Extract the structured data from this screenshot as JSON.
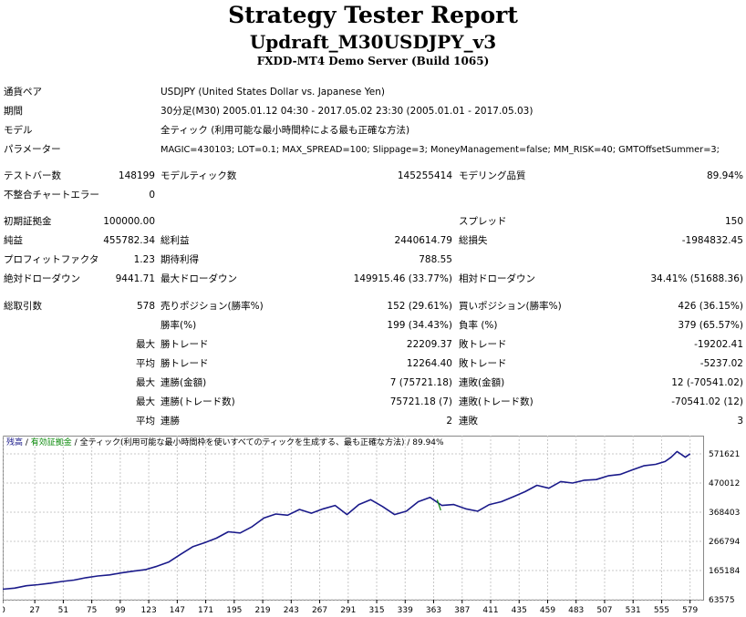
{
  "title": "Strategy Tester Report",
  "strategy": "Updraft_M30USDJPY_v3",
  "server": "FXDD-MT4 Demo Server (Build 1065)",
  "settings": [
    {
      "label": "通貨ペア",
      "value": "USDJPY (United States Dollar vs. Japanese Yen)"
    },
    {
      "label": "期間",
      "value": "30分足(M30) 2005.01.12 04:30 - 2017.05.02 23:30 (2005.01.01 - 2017.05.03)"
    },
    {
      "label": "モデル",
      "value": "全ティック (利用可能な最小時間枠による最も正確な方法)"
    },
    {
      "label": "パラメーター",
      "value": "MAGIC=430103; LOT=0.1; MAX_SPREAD=100; Slippage=3; MoneyManagement=false; MM_RISK=40; GMTOffsetSummer=3;"
    }
  ],
  "stats": {
    "bars_label": "テストバー数",
    "bars": "148199",
    "ticks_label": "モデルティック数",
    "ticks": "145255414",
    "quality_label": "モデリング品質",
    "quality": "89.94%",
    "mismatch_label": "不整合チャートエラー",
    "mismatch": "0",
    "deposit_label": "初期証拠金",
    "deposit": "100000.00",
    "spread_label": "スプレッド",
    "spread": "150",
    "net_label": "純益",
    "net": "455782.34",
    "gross_profit_label": "総利益",
    "gross_profit": "2440614.79",
    "gross_loss_label": "総損失",
    "gross_loss": "-1984832.45",
    "pf_label": "プロフィットファクタ",
    "pf": "1.23",
    "expected_label": "期待利得",
    "expected": "788.55",
    "abs_dd_label": "絶対ドローダウン",
    "abs_dd": "9441.71",
    "max_dd_label": "最大ドローダウン",
    "max_dd": "149915.46 (33.77%)",
    "rel_dd_label": "相対ドローダウン",
    "rel_dd": "34.41% (51688.36)",
    "total_label": "総取引数",
    "total": "578",
    "short_label": "売りポジション(勝率%)",
    "short": "152 (29.61%)",
    "long_label": "買いポジション(勝率%)",
    "long": "426 (36.15%)",
    "win_pct_label": "勝率(%)",
    "win_pct": "199 (34.43%)",
    "loss_pct_label": "負率 (%)",
    "loss_pct": "379 (65.57%)",
    "max1": "最大",
    "max_win_label": "勝トレード",
    "max_win": "22209.37",
    "max_loss_label": "敗トレード",
    "max_loss": "-19202.41",
    "avg1": "平均",
    "avg_win_label": "勝トレード",
    "avg_win": "12264.40",
    "avg_loss_label": "敗トレード",
    "avg_loss": "-5237.02",
    "max2": "最大",
    "cons_win_amt_label": "連勝(金額)",
    "cons_win_amt": "7 (75721.18)",
    "cons_loss_amt_label": "連敗(金額)",
    "cons_loss_amt": "12 (-70541.02)",
    "max3": "最大",
    "cons_win_cnt_label": "連勝(トレード数)",
    "cons_win_cnt": "75721.18 (7)",
    "cons_loss_cnt_label": "連敗(トレード数)",
    "cons_loss_cnt": "-70541.02 (12)",
    "avg2": "平均",
    "avg_cons_win_label": "連勝",
    "avg_cons_win": "2",
    "avg_cons_loss_label": "連敗",
    "avg_cons_loss": "3"
  },
  "chart_data": {
    "type": "line",
    "legend": {
      "balance": "残高",
      "sep1": " / ",
      "equity": "有効証拠金",
      "sep2": " / ",
      "model": "全ティック(利用可能な最小時間枠を使いすべてのティックを生成する、最も正確な方法) / 89.94%"
    },
    "xticks": [
      "0",
      "27",
      "51",
      "75",
      "99",
      "123",
      "147",
      "171",
      "195",
      "219",
      "243",
      "267",
      "291",
      "315",
      "339",
      "363",
      "387",
      "411",
      "435",
      "459",
      "483",
      "507",
      "531",
      "555",
      "579"
    ],
    "yticks": [
      "571621",
      "470012",
      "368403",
      "266794",
      "165184",
      "63575"
    ],
    "ylim": [
      63575,
      571621
    ],
    "xlim": [
      0,
      590
    ],
    "colors": {
      "balance": "#1a1a8a",
      "equity": "#0a8a0a",
      "grid": "#c8c8c8"
    },
    "series": [
      {
        "name": "残高",
        "points": [
          [
            0,
            100000
          ],
          [
            10,
            104000
          ],
          [
            20,
            112000
          ],
          [
            30,
            116000
          ],
          [
            40,
            121000
          ],
          [
            50,
            127000
          ],
          [
            60,
            132000
          ],
          [
            70,
            140000
          ],
          [
            80,
            146000
          ],
          [
            90,
            150000
          ],
          [
            100,
            157000
          ],
          [
            110,
            163000
          ],
          [
            120,
            168000
          ],
          [
            130,
            180000
          ],
          [
            140,
            195000
          ],
          [
            150,
            222000
          ],
          [
            160,
            248000
          ],
          [
            170,
            262000
          ],
          [
            180,
            278000
          ],
          [
            190,
            300000
          ],
          [
            200,
            296000
          ],
          [
            210,
            318000
          ],
          [
            220,
            348000
          ],
          [
            230,
            362000
          ],
          [
            240,
            358000
          ],
          [
            250,
            378000
          ],
          [
            260,
            365000
          ],
          [
            270,
            380000
          ],
          [
            280,
            392000
          ],
          [
            290,
            360000
          ],
          [
            300,
            395000
          ],
          [
            310,
            412000
          ],
          [
            320,
            388000
          ],
          [
            330,
            360000
          ],
          [
            340,
            372000
          ],
          [
            350,
            405000
          ],
          [
            360,
            420000
          ],
          [
            370,
            392000
          ],
          [
            380,
            395000
          ],
          [
            390,
            380000
          ],
          [
            400,
            372000
          ],
          [
            410,
            395000
          ],
          [
            420,
            405000
          ],
          [
            430,
            422000
          ],
          [
            440,
            440000
          ],
          [
            450,
            462000
          ],
          [
            460,
            452000
          ],
          [
            470,
            475000
          ],
          [
            480,
            470000
          ],
          [
            490,
            480000
          ],
          [
            500,
            482000
          ],
          [
            510,
            495000
          ],
          [
            520,
            500000
          ],
          [
            530,
            515000
          ],
          [
            540,
            530000
          ],
          [
            550,
            535000
          ],
          [
            558,
            545000
          ],
          [
            563,
            560000
          ],
          [
            568,
            580000
          ],
          [
            575,
            560000
          ],
          [
            579,
            572000
          ]
        ]
      },
      {
        "name": "有効証拠金",
        "points": [
          [
            366,
            412000
          ],
          [
            369,
            375000
          ]
        ]
      }
    ]
  }
}
